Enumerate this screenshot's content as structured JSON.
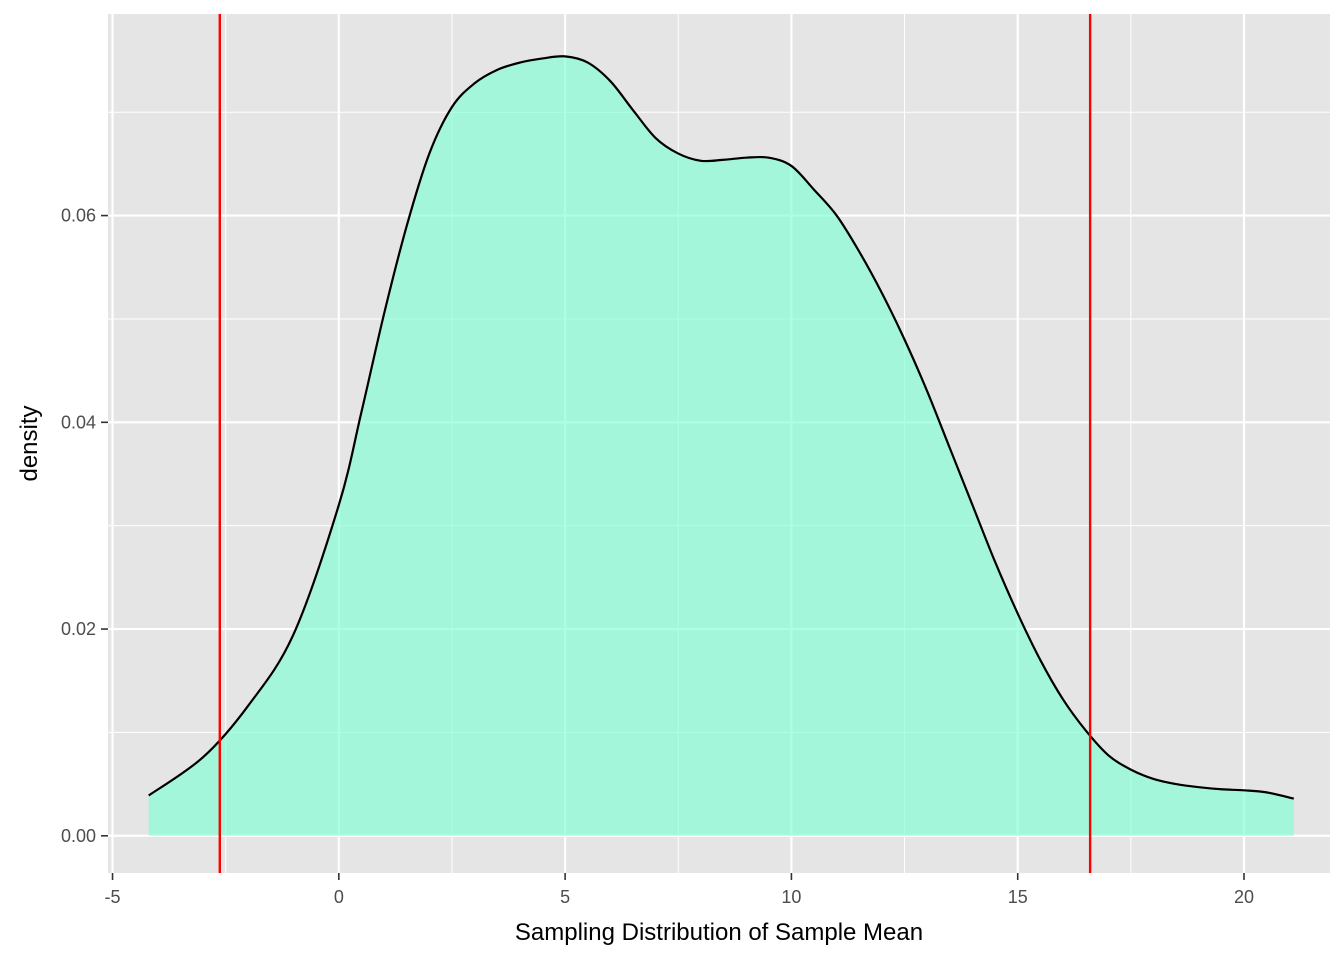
{
  "chart_data": {
    "type": "area",
    "title": "",
    "xlabel": "Sampling Distribution of Sample Mean",
    "ylabel": "density",
    "xlim": [
      -5.1,
      21.9
    ],
    "ylim": [
      -0.0036,
      0.0795
    ],
    "x_ticks": [
      -5,
      0,
      5,
      10,
      15,
      20
    ],
    "x_tick_labels": [
      "-5",
      "0",
      "5",
      "10",
      "15",
      "20"
    ],
    "y_ticks": [
      0.0,
      0.02,
      0.04,
      0.06
    ],
    "y_tick_labels": [
      "0.00",
      "0.02",
      "0.04",
      "0.06"
    ],
    "grid": true,
    "legend": "none",
    "colors": {
      "panel": "#e5e5e5",
      "grid": "#ffffff",
      "fill": "#7fffd4",
      "curve": "#000000",
      "vline": "#ff0000"
    },
    "series": [
      {
        "x": [
          -4.2,
          -3.0,
          -2.0,
          -1.0,
          0.0,
          0.5,
          1.0,
          1.5,
          2.0,
          2.5,
          3.0,
          3.5,
          4.0,
          4.5,
          5.0,
          5.5,
          6.0,
          6.5,
          7.0,
          7.5,
          8.0,
          8.5,
          9.0,
          9.5,
          10.0,
          10.5,
          11.0,
          11.5,
          12.0,
          12.5,
          13.0,
          13.5,
          14.0,
          14.5,
          15.0,
          15.5,
          16.0,
          16.5,
          17.0,
          17.5,
          18.0,
          18.5,
          19.0,
          19.5,
          20.0,
          20.5,
          21.1
        ],
        "y": [
          0.0039,
          0.0076,
          0.0126,
          0.0195,
          0.032,
          0.041,
          0.0505,
          0.059,
          0.066,
          0.0705,
          0.0728,
          0.0741,
          0.0748,
          0.0752,
          0.0754,
          0.0748,
          0.073,
          0.0702,
          0.0675,
          0.066,
          0.0653,
          0.0654,
          0.0656,
          0.0656,
          0.0648,
          0.0625,
          0.06,
          0.0565,
          0.0525,
          0.048,
          0.043,
          0.0375,
          0.032,
          0.0265,
          0.0215,
          0.017,
          0.0132,
          0.0102,
          0.0078,
          0.0064,
          0.0055,
          0.005,
          0.0047,
          0.0045,
          0.0044,
          0.0042,
          0.0036
        ]
      }
    ],
    "vlines": [
      -2.63,
      16.6
    ]
  }
}
